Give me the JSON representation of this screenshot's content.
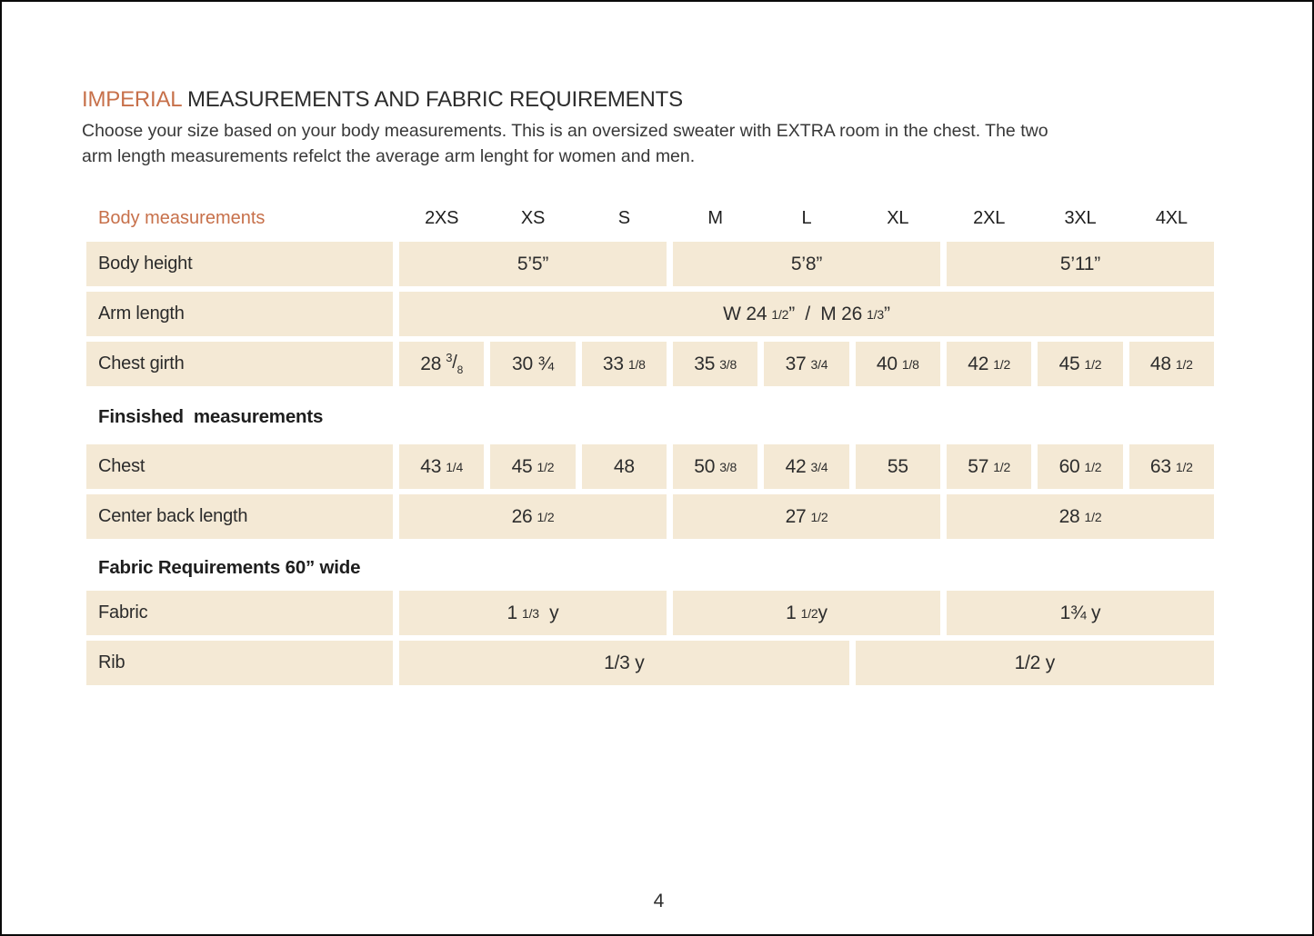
{
  "page": {
    "number": "4"
  },
  "colors": {
    "accent": "#c7704a",
    "cell_background": "#f4e9d5",
    "text": "#2d2d2d",
    "frame": "#0a0a0a"
  },
  "header": {
    "title_accent": "IMPERIAL",
    "title_rest": " MEASUREMENTS AND FABRIC REQUIREMENTS",
    "intro_line1": "Choose your size based on your body measurements. This is an oversized sweater with EXTRA room in the chest. The two",
    "intro_line2": "arm length measurements refelct the average arm lenght for women and men."
  },
  "table": {
    "header_label": "Body measurements",
    "size_headers": [
      "2XS",
      "XS",
      "S",
      "M",
      "L",
      "XL",
      "2XL",
      "3XL",
      "4XL"
    ],
    "sections": [
      {
        "title": null,
        "rows": [
          {
            "label": "Body height",
            "cells": [
              {
                "span": 3,
                "parts": [
                  [
                    "5’5”",
                    "main"
                  ]
                ]
              },
              {
                "span": 3,
                "parts": [
                  [
                    "5’8”",
                    "main"
                  ]
                ]
              },
              {
                "span": 3,
                "parts": [
                  [
                    "5’11”",
                    "main"
                  ]
                ]
              }
            ]
          },
          {
            "label": "Arm length",
            "cells": [
              {
                "span": 9,
                "parts": [
                  [
                    "W 24",
                    "main"
                  ],
                  [
                    "1/2",
                    "frac"
                  ],
                  [
                    "”",
                    "main"
                  ],
                  [
                    "  /  ",
                    "main"
                  ],
                  [
                    "M 26",
                    "main"
                  ],
                  [
                    "1/3",
                    "frac"
                  ],
                  [
                    "”",
                    "main"
                  ]
                ]
              }
            ]
          },
          {
            "label": "Chest girth",
            "cells": [
              {
                "span": 1,
                "parts": [
                  [
                    "28",
                    "main"
                  ],
                  [
                    "3",
                    "sup"
                  ],
                  [
                    "/",
                    "slash"
                  ],
                  [
                    "8",
                    "sub"
                  ]
                ]
              },
              {
                "span": 1,
                "parts": [
                  [
                    "30 ¾",
                    "main"
                  ]
                ]
              },
              {
                "span": 1,
                "parts": [
                  [
                    "33",
                    "main"
                  ],
                  [
                    "1/8",
                    "frac"
                  ]
                ]
              },
              {
                "span": 1,
                "parts": [
                  [
                    "35",
                    "main"
                  ],
                  [
                    "3/8",
                    "frac"
                  ]
                ]
              },
              {
                "span": 1,
                "parts": [
                  [
                    "37",
                    "main"
                  ],
                  [
                    "3/4",
                    "frac"
                  ]
                ]
              },
              {
                "span": 1,
                "parts": [
                  [
                    "40",
                    "main"
                  ],
                  [
                    "1/8",
                    "frac"
                  ]
                ]
              },
              {
                "span": 1,
                "parts": [
                  [
                    "42",
                    "main"
                  ],
                  [
                    "1/2",
                    "frac"
                  ]
                ]
              },
              {
                "span": 1,
                "parts": [
                  [
                    "45",
                    "main"
                  ],
                  [
                    "1/2",
                    "frac"
                  ]
                ]
              },
              {
                "span": 1,
                "parts": [
                  [
                    "48",
                    "main"
                  ],
                  [
                    "1/2",
                    "frac"
                  ]
                ]
              }
            ]
          }
        ]
      },
      {
        "title": "Finsished  measurements",
        "title_class": "first",
        "rows": [
          {
            "label": "Chest",
            "cells": [
              {
                "span": 1,
                "parts": [
                  [
                    "43",
                    "main"
                  ],
                  [
                    "1/4",
                    "frac"
                  ]
                ]
              },
              {
                "span": 1,
                "parts": [
                  [
                    "45",
                    "main"
                  ],
                  [
                    "1/2",
                    "frac"
                  ]
                ]
              },
              {
                "span": 1,
                "parts": [
                  [
                    "48",
                    "main"
                  ]
                ]
              },
              {
                "span": 1,
                "parts": [
                  [
                    "50",
                    "main"
                  ],
                  [
                    "3/8",
                    "frac"
                  ]
                ]
              },
              {
                "span": 1,
                "parts": [
                  [
                    "42",
                    "main"
                  ],
                  [
                    "3/4",
                    "frac"
                  ]
                ]
              },
              {
                "span": 1,
                "parts": [
                  [
                    "55",
                    "main"
                  ]
                ]
              },
              {
                "span": 1,
                "parts": [
                  [
                    "57",
                    "main"
                  ],
                  [
                    "1/2",
                    "frac"
                  ]
                ]
              },
              {
                "span": 1,
                "parts": [
                  [
                    "60",
                    "main"
                  ],
                  [
                    "1/2",
                    "frac"
                  ]
                ]
              },
              {
                "span": 1,
                "parts": [
                  [
                    "63",
                    "main"
                  ],
                  [
                    "1/2",
                    "frac"
                  ]
                ]
              }
            ]
          },
          {
            "label": "Center back length",
            "cells": [
              {
                "span": 3,
                "parts": [
                  [
                    "26",
                    "main"
                  ],
                  [
                    "1/2",
                    "frac"
                  ]
                ]
              },
              {
                "span": 3,
                "parts": [
                  [
                    "27",
                    "main"
                  ],
                  [
                    "1/2",
                    "frac"
                  ]
                ]
              },
              {
                "span": 3,
                "parts": [
                  [
                    "28",
                    "main"
                  ],
                  [
                    "1/2",
                    "frac"
                  ]
                ]
              }
            ]
          }
        ]
      },
      {
        "title": "Fabric Requirements 60” wide",
        "title_class": "second",
        "rows": [
          {
            "label": "Fabric",
            "cells": [
              {
                "span": 3,
                "parts": [
                  [
                    "1",
                    "main"
                  ],
                  [
                    "1/3",
                    "frac"
                  ],
                  [
                    "  y",
                    "main"
                  ]
                ]
              },
              {
                "span": 3,
                "parts": [
                  [
                    "1",
                    "main"
                  ],
                  [
                    "1/2",
                    "frac"
                  ],
                  [
                    "y",
                    "main"
                  ]
                ]
              },
              {
                "span": 3,
                "parts": [
                  [
                    "1¾ y",
                    "main"
                  ]
                ]
              }
            ]
          },
          {
            "label": "Rib",
            "cells": [
              {
                "span": 5,
                "parts": [
                  [
                    "1/3 y",
                    "main"
                  ]
                ]
              },
              {
                "span": 4,
                "parts": [
                  [
                    "1/2 y",
                    "main"
                  ]
                ]
              }
            ]
          }
        ]
      }
    ]
  }
}
